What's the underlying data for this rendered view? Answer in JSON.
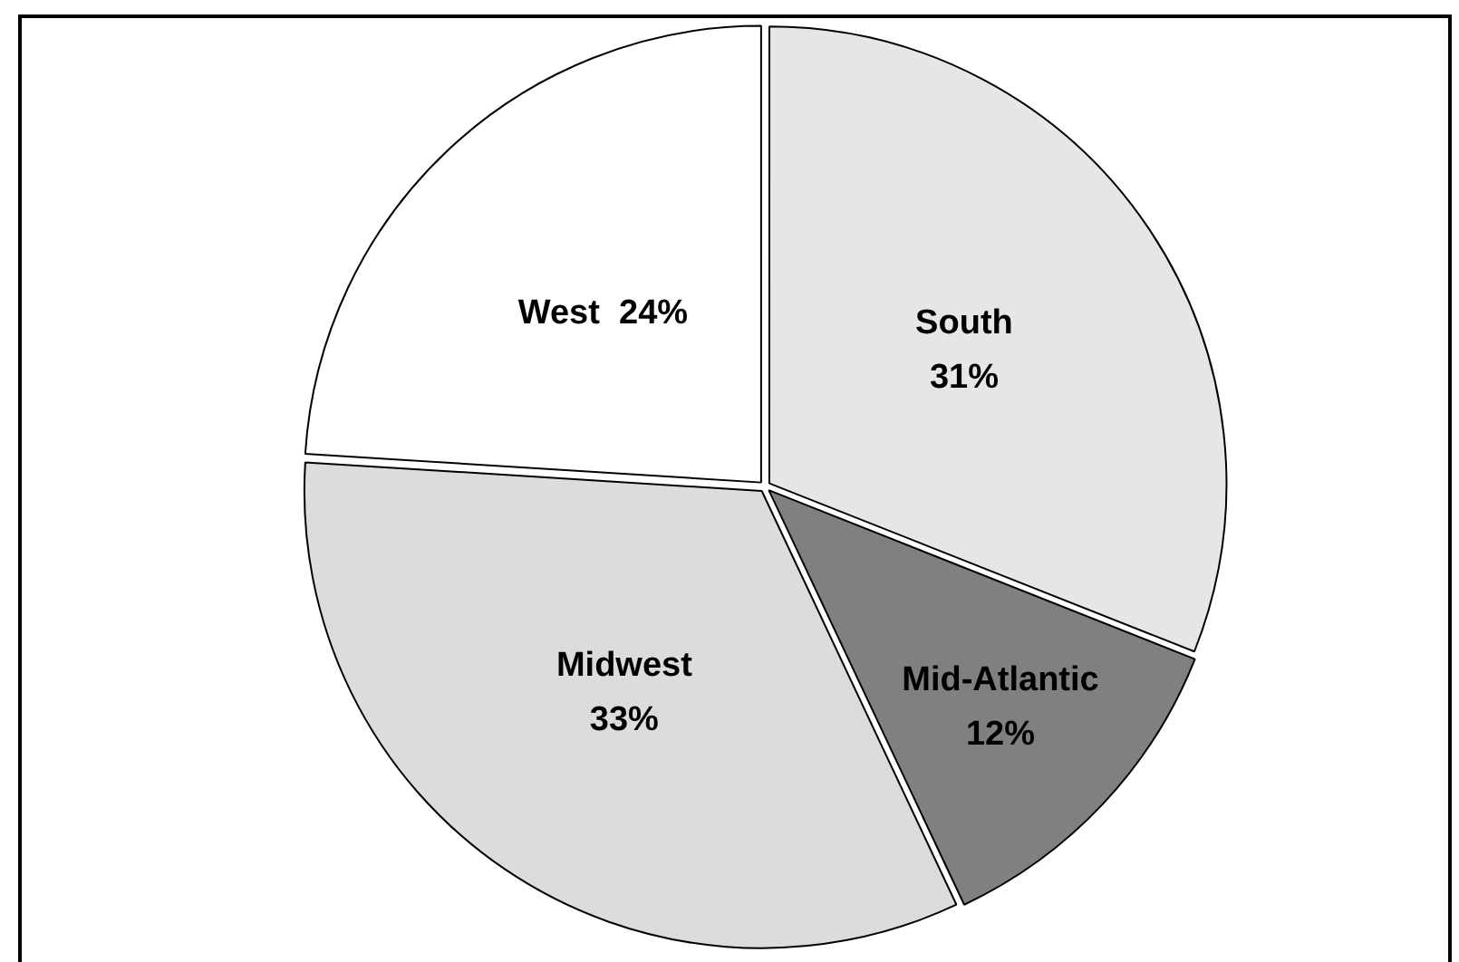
{
  "chart_data": {
    "type": "pie",
    "categories": [
      "South",
      "Mid-Atlantic",
      "Midwest",
      "West"
    ],
    "values": [
      31,
      12,
      33,
      24
    ],
    "colors": [
      "#e6e6e6",
      "#808080",
      "#dcdcdc",
      "#ffffff"
    ],
    "value_labels": [
      "31%",
      "12%",
      "33%",
      "24%"
    ]
  }
}
